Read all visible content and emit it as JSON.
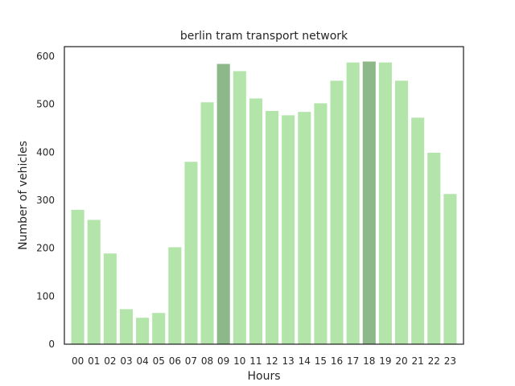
{
  "chart_data": {
    "type": "bar",
    "title": "berlin tram transport network",
    "xlabel": "Hours",
    "ylabel": "Number of vehicles",
    "categories": [
      "00",
      "01",
      "02",
      "03",
      "04",
      "05",
      "06",
      "07",
      "08",
      "09",
      "10",
      "11",
      "12",
      "13",
      "14",
      "15",
      "16",
      "17",
      "18",
      "19",
      "20",
      "21",
      "22",
      "23"
    ],
    "values": [
      280,
      259,
      189,
      73,
      55,
      65,
      202,
      380,
      504,
      584,
      569,
      512,
      486,
      477,
      484,
      502,
      549,
      587,
      589,
      587,
      549,
      472,
      399,
      313
    ],
    "highlighted": [
      "09",
      "18"
    ],
    "ylim": [
      0,
      620
    ],
    "yticks": [
      0,
      100,
      200,
      300,
      400,
      500,
      600
    ],
    "grid": false,
    "colors": {
      "bar": "#b3e5ab",
      "highlight_bar": "#8cb88a",
      "axes": "#262626"
    }
  }
}
